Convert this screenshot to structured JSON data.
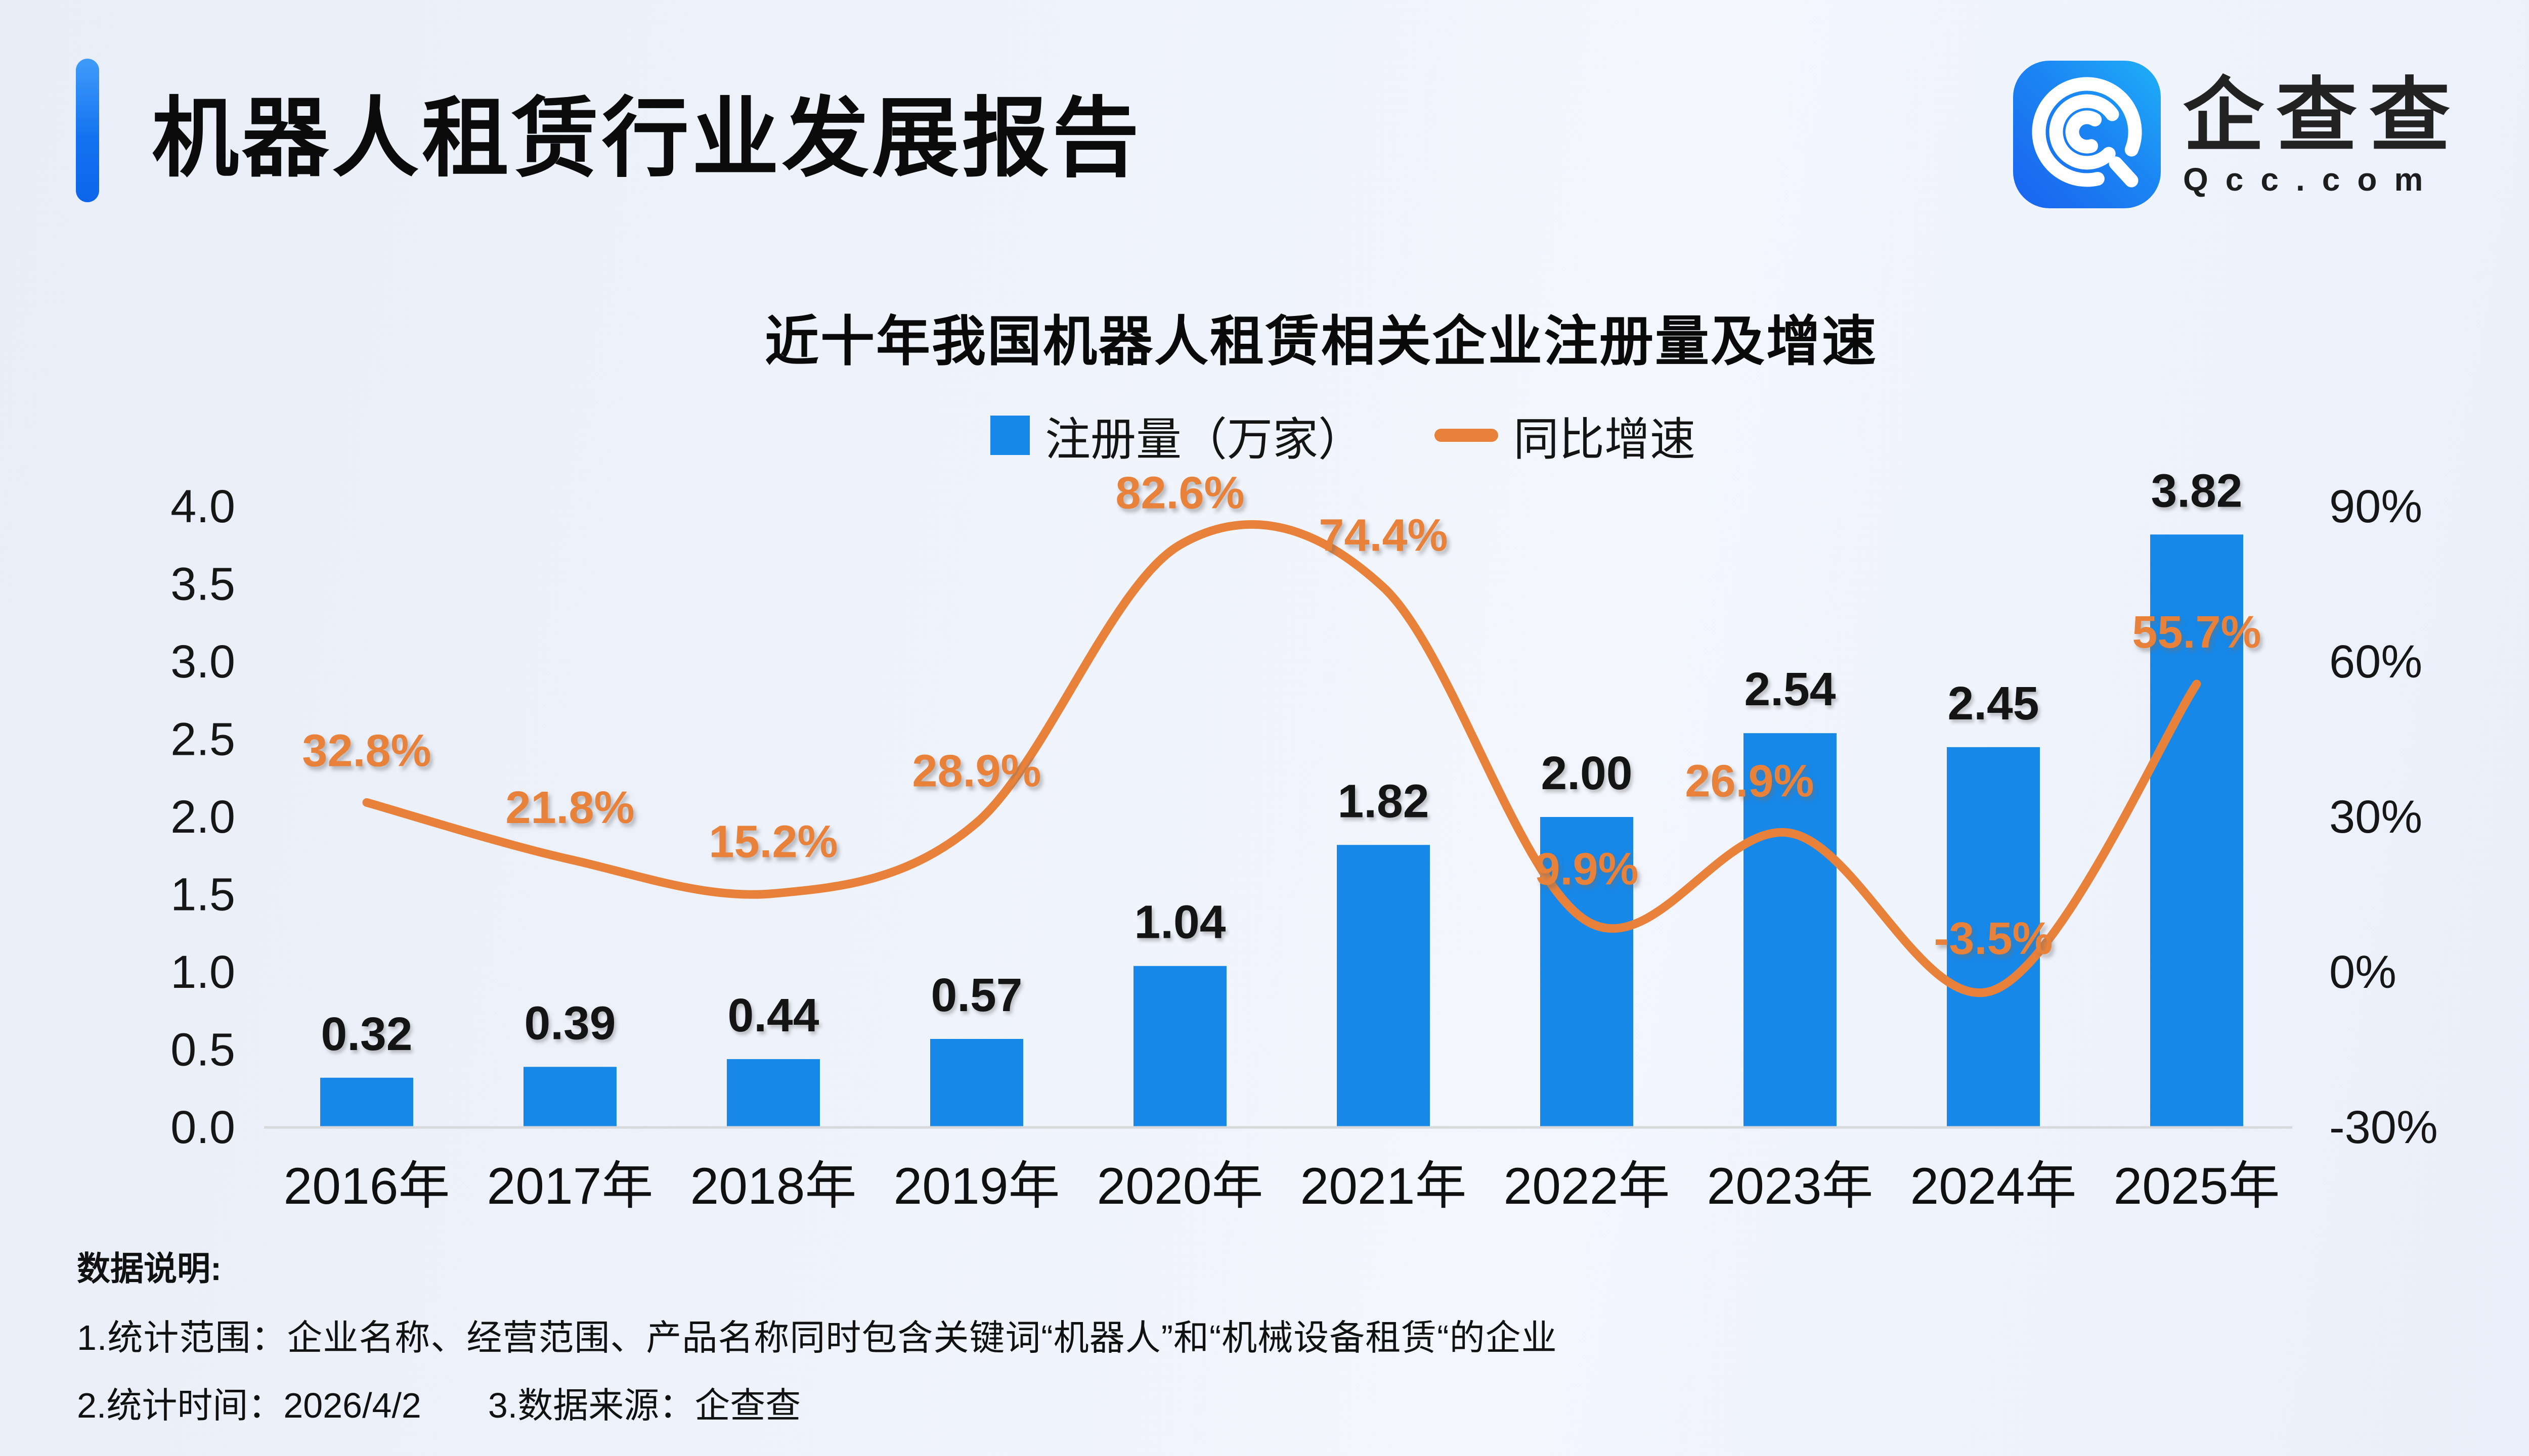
{
  "header": {
    "title": "机器人租赁行业发展报告",
    "logo_text": "企查查",
    "logo_domain": "Qcc.com"
  },
  "chart": {
    "title": "近十年我国机器人租赁相关企业注册量及增速"
  },
  "chart_data": {
    "type": "bar+line",
    "title": "近十年我国机器人租赁相关企业注册量及增速",
    "categories": [
      "2016年",
      "2017年",
      "2018年",
      "2019年",
      "2020年",
      "2021年",
      "2022年",
      "2023年",
      "2024年",
      "2025年"
    ],
    "series": [
      {
        "name": "注册量（万家）",
        "type": "bar",
        "axis": "left",
        "color": "#1788E8",
        "values": [
          0.32,
          0.39,
          0.44,
          0.57,
          1.04,
          1.82,
          2.0,
          2.54,
          2.45,
          3.82
        ],
        "value_labels": [
          "0.32",
          "0.39",
          "0.44",
          "0.57",
          "1.04",
          "1.82",
          "2.00",
          "2.54",
          "2.45",
          "3.82"
        ]
      },
      {
        "name": "同比增速",
        "type": "line",
        "axis": "right",
        "color": "#E8813A",
        "values": [
          32.8,
          21.8,
          15.2,
          28.9,
          82.6,
          74.4,
          9.9,
          26.9,
          -3.5,
          55.7
        ],
        "value_labels": [
          "32.8%",
          "21.8%",
          "15.2%",
          "28.9%",
          "82.6%",
          "74.4%",
          "9.9%",
          "26.9%",
          "-3.5%",
          "55.7%"
        ],
        "label_dx": [
          0,
          0,
          0,
          0,
          0,
          0,
          0,
          -80,
          0,
          0
        ]
      }
    ],
    "left_axis": {
      "min": 0,
      "max": 4,
      "step": 0.5,
      "tick_labels": [
        "0.0",
        "0.5",
        "1.0",
        "1.5",
        "2.0",
        "2.5",
        "3.0",
        "3.5",
        "4.0"
      ]
    },
    "right_axis": {
      "min": -30,
      "max": 90,
      "step": 30,
      "tick_labels": [
        "-30%",
        "0%",
        "30%",
        "60%",
        "90%"
      ]
    },
    "grid": false,
    "legend_position": "top",
    "smooth_line": true
  },
  "footer": {
    "heading": "数据说明:",
    "note1": "1.统计范围：企业名称、经营范围、产品名称同时包含关键词“机器人”和“机械设备租赁“的企业",
    "note2": "2.统计时间：2026/4/2",
    "note3": "3.数据来源：企查查"
  },
  "colors": {
    "bar": "#1788E8",
    "line": "#E8813A",
    "accent_bar": "#1472F0",
    "logo_blue_dark": "#1A6FF1",
    "logo_blue_light": "#1FA9F6",
    "axis_line": "#D8D9DB",
    "text": "#141414"
  }
}
